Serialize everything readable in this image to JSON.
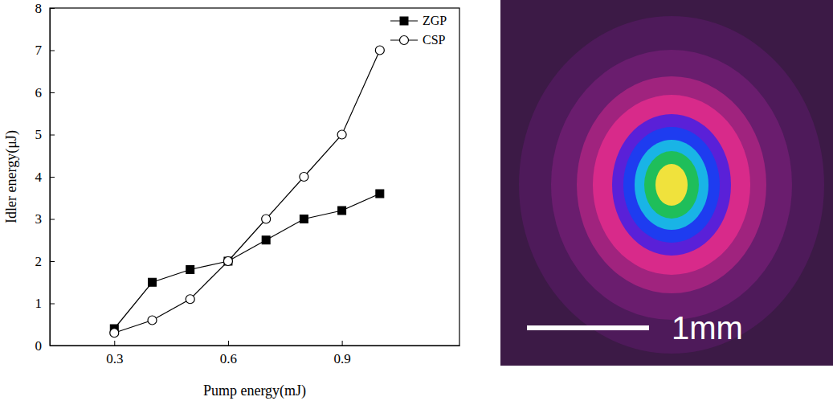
{
  "chart_data": {
    "type": "line",
    "x_label": "Pump energy(mJ)",
    "y_label": "Idler energy(μJ)",
    "x": [
      0.3,
      0.4,
      0.5,
      0.6,
      0.7,
      0.8,
      0.9,
      1.0
    ],
    "series": [
      {
        "name": "ZGP",
        "color": "#000000",
        "marker": "square",
        "line_style": "solid",
        "values": [
          0.4,
          1.5,
          1.8,
          2.0,
          2.5,
          3.0,
          3.2,
          3.6
        ]
      },
      {
        "name": "CSP",
        "color": "#000000",
        "marker": "open-circle",
        "line_style": "solid",
        "values": [
          0.3,
          0.6,
          1.1,
          2.0,
          3.0,
          4.0,
          5.0,
          7.0
        ]
      }
    ],
    "xlim": [
      0.13,
      1.21
    ],
    "xticks": [
      0.3,
      0.6,
      0.9
    ],
    "ylim": [
      0,
      8
    ],
    "yticks": [
      0,
      1,
      2,
      3,
      4,
      5,
      6,
      7,
      8
    ],
    "grid": false,
    "legend": "upper right"
  },
  "image": {
    "scale_bar_label": "1mm"
  }
}
